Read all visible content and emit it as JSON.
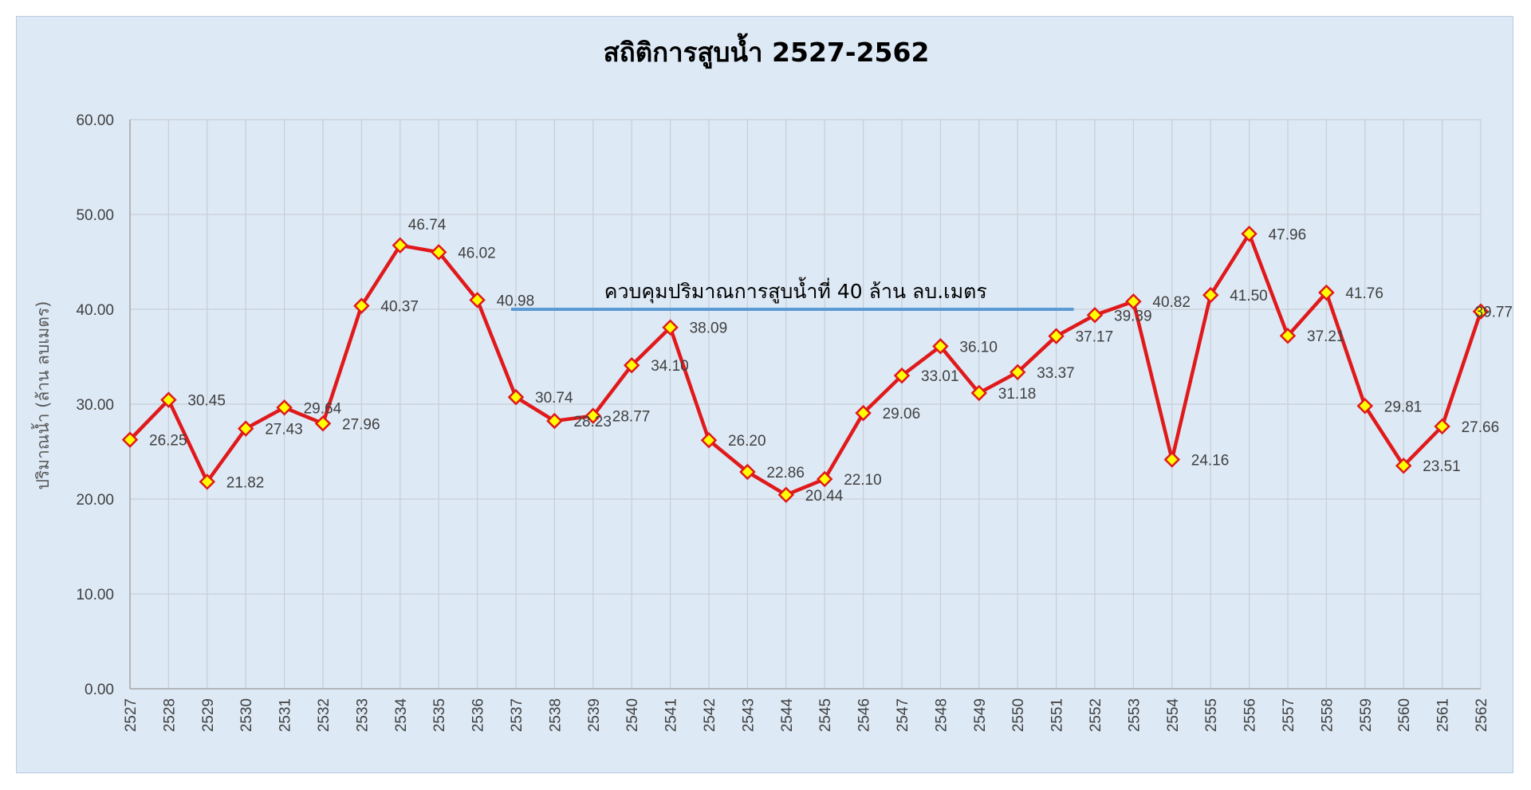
{
  "chart_data": {
    "type": "line",
    "title": "สถิติการสูบน้ำ 2527-2562",
    "xlabel": "",
    "ylabel": "ปริมาณน้ำ (ล้าน ลบเมตร)",
    "ylim": [
      0,
      60
    ],
    "ytick_step": 10,
    "ytick_decimals": 2,
    "grid": true,
    "legend": "none",
    "categories": [
      "2527",
      "2528",
      "2529",
      "2530",
      "2531",
      "2532",
      "2533",
      "2534",
      "2535",
      "2536",
      "2537",
      "2538",
      "2539",
      "2540",
      "2541",
      "2542",
      "2543",
      "2544",
      "2545",
      "2546",
      "2547",
      "2548",
      "2549",
      "2550",
      "2551",
      "2552",
      "2553",
      "2554",
      "2555",
      "2556",
      "2557",
      "2558",
      "2559",
      "2560",
      "2561",
      "2562"
    ],
    "series": [
      {
        "values": [
          26.25,
          30.45,
          21.82,
          27.43,
          29.64,
          27.96,
          40.37,
          46.74,
          46.02,
          40.98,
          30.74,
          28.23,
          28.77,
          34.1,
          38.09,
          26.2,
          22.86,
          20.44,
          22.1,
          29.06,
          33.01,
          36.1,
          31.18,
          33.37,
          37.17,
          39.39,
          40.82,
          24.16,
          41.5,
          47.96,
          37.21,
          41.76,
          29.81,
          23.51,
          27.66,
          39.77
        ],
        "data_labels": [
          "26.25",
          "30.45",
          "21.82",
          "27.43",
          "29.64",
          "27.96",
          "40.37",
          "46.74",
          "46.02",
          "40.98",
          "30.74",
          "28.23",
          "28.77",
          "34.10",
          "38.09",
          "26.20",
          "22.86",
          "20.44",
          "22.10",
          "29.06",
          "33.01",
          "36.10",
          "31.18",
          "33.37",
          "37.17",
          "39.39",
          "40.82",
          "24.16",
          "41.50",
          "47.96",
          "37.21",
          "41.76",
          "29.81",
          "23.51",
          "27.66",
          "39.77"
        ],
        "line_color": "#e0191b",
        "marker": "diamond",
        "marker_fill": "#ffff00",
        "marker_edge": "#e0191b"
      }
    ],
    "annotations": [
      {
        "text": "ควบคุมปริมาณการสูบน้ำที่ 40 ล้าน ลบ.เมตร",
        "y_value": 40,
        "x_from": "2537",
        "x_to": "2551",
        "color": "#5b9bd5"
      }
    ]
  }
}
